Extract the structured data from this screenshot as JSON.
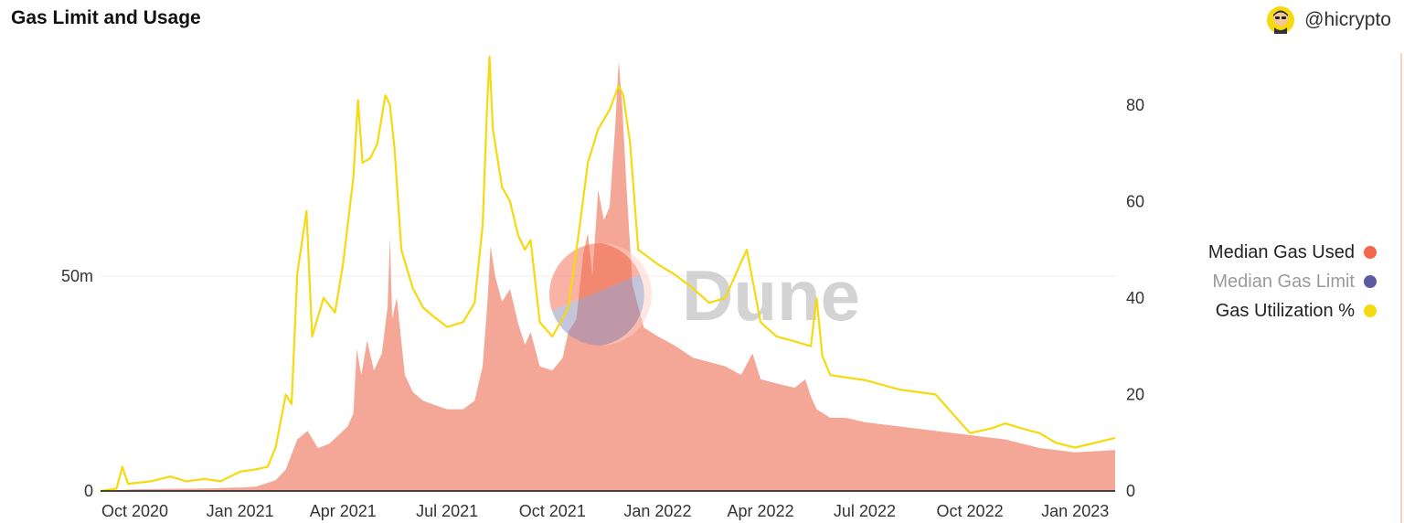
{
  "header": {
    "title": "Gas Limit and Usage",
    "author": "@hicrypto"
  },
  "watermark": {
    "text": "Dune"
  },
  "colors": {
    "gas_used": "#f4a796",
    "gas_used_legend": "#f2684a",
    "gas_limit": "#5a5aa0",
    "utilization": "#f6d90f",
    "grid": "#eeeeee",
    "axis": "#111111"
  },
  "legend": {
    "items": [
      {
        "label": "Median Gas Used",
        "color": "#f2684a",
        "muted": false
      },
      {
        "label": "Median Gas Limit",
        "color": "#5a5aa0",
        "muted": true
      },
      {
        "label": "Gas Utilization %",
        "color": "#f6d90f",
        "muted": false
      }
    ]
  },
  "chart_data": {
    "type": "area",
    "x_axis": {
      "type": "date",
      "range": [
        "2020-09-01",
        "2023-02-05"
      ],
      "ticks": [
        {
          "date": "2020-10-01",
          "label": "Oct 2020"
        },
        {
          "date": "2021-01-01",
          "label": "Jan 2021"
        },
        {
          "date": "2021-04-01",
          "label": "Apr 2021"
        },
        {
          "date": "2021-07-01",
          "label": "Jul 2021"
        },
        {
          "date": "2021-10-01",
          "label": "Oct 2021"
        },
        {
          "date": "2022-01-01",
          "label": "Jan 2022"
        },
        {
          "date": "2022-04-01",
          "label": "Apr 2022"
        },
        {
          "date": "2022-07-01",
          "label": "Jul 2022"
        },
        {
          "date": "2022-10-01",
          "label": "Oct 2022"
        },
        {
          "date": "2023-01-01",
          "label": "Jan 2023"
        }
      ]
    },
    "y_left": {
      "range": [
        0,
        101000000
      ],
      "ticks": [
        {
          "value": 0,
          "label": "0"
        },
        {
          "value": 50000000,
          "label": "50m"
        }
      ]
    },
    "y_right": {
      "range": [
        0,
        90
      ],
      "ticks": [
        {
          "value": 0,
          "label": "0"
        },
        {
          "value": 20,
          "label": "20"
        },
        {
          "value": 40,
          "label": "40"
        },
        {
          "value": 60,
          "label": "60"
        },
        {
          "value": 80,
          "label": "80"
        }
      ]
    },
    "grid": true,
    "legend_position": "right",
    "series": [
      {
        "name": "Median Gas Used",
        "axis": "left",
        "style": "area",
        "points": [
          [
            "2020-09-01",
            0
          ],
          [
            "2020-10-01",
            400000
          ],
          [
            "2020-11-01",
            500000
          ],
          [
            "2020-12-01",
            600000
          ],
          [
            "2021-01-01",
            800000
          ],
          [
            "2021-01-15",
            1000000
          ],
          [
            "2021-02-01",
            2500000
          ],
          [
            "2021-02-10",
            5000000
          ],
          [
            "2021-02-20",
            12000000
          ],
          [
            "2021-03-01",
            14000000
          ],
          [
            "2021-03-10",
            10000000
          ],
          [
            "2021-03-20",
            11000000
          ],
          [
            "2021-03-28",
            13000000
          ],
          [
            "2021-04-05",
            15000000
          ],
          [
            "2021-04-10",
            18000000
          ],
          [
            "2021-04-13",
            33000000
          ],
          [
            "2021-04-17",
            27000000
          ],
          [
            "2021-04-22",
            35000000
          ],
          [
            "2021-04-28",
            28000000
          ],
          [
            "2021-05-05",
            32000000
          ],
          [
            "2021-05-10",
            43000000
          ],
          [
            "2021-05-12",
            59000000
          ],
          [
            "2021-05-14",
            40000000
          ],
          [
            "2021-05-18",
            45000000
          ],
          [
            "2021-05-25",
            27000000
          ],
          [
            "2021-06-01",
            23000000
          ],
          [
            "2021-06-10",
            21000000
          ],
          [
            "2021-06-20",
            20000000
          ],
          [
            "2021-07-01",
            19000000
          ],
          [
            "2021-07-15",
            19000000
          ],
          [
            "2021-07-25",
            21000000
          ],
          [
            "2021-08-01",
            29000000
          ],
          [
            "2021-08-05",
            43000000
          ],
          [
            "2021-08-08",
            57000000
          ],
          [
            "2021-08-12",
            50000000
          ],
          [
            "2021-08-18",
            44000000
          ],
          [
            "2021-08-25",
            47000000
          ],
          [
            "2021-09-01",
            39000000
          ],
          [
            "2021-09-07",
            34000000
          ],
          [
            "2021-09-12",
            37000000
          ],
          [
            "2021-09-20",
            29000000
          ],
          [
            "2021-10-01",
            28000000
          ],
          [
            "2021-10-10",
            31000000
          ],
          [
            "2021-10-15",
            37000000
          ],
          [
            "2021-10-22",
            40000000
          ],
          [
            "2021-10-28",
            55000000
          ],
          [
            "2021-11-01",
            60000000
          ],
          [
            "2021-11-05",
            50000000
          ],
          [
            "2021-11-10",
            70000000
          ],
          [
            "2021-11-15",
            63000000
          ],
          [
            "2021-11-20",
            66000000
          ],
          [
            "2021-11-25",
            85000000
          ],
          [
            "2021-11-28",
            100000000
          ],
          [
            "2021-12-01",
            90000000
          ],
          [
            "2021-12-05",
            70000000
          ],
          [
            "2021-12-10",
            48000000
          ],
          [
            "2021-12-20",
            38000000
          ],
          [
            "2022-01-01",
            36000000
          ],
          [
            "2022-01-15",
            34000000
          ],
          [
            "2022-02-01",
            31000000
          ],
          [
            "2022-02-15",
            30000000
          ],
          [
            "2022-03-01",
            29000000
          ],
          [
            "2022-03-15",
            27000000
          ],
          [
            "2022-03-25",
            32000000
          ],
          [
            "2022-04-01",
            26000000
          ],
          [
            "2022-04-15",
            25000000
          ],
          [
            "2022-05-01",
            24000000
          ],
          [
            "2022-05-10",
            26000000
          ],
          [
            "2022-05-15",
            22000000
          ],
          [
            "2022-05-20",
            19000000
          ],
          [
            "2022-06-01",
            17000000
          ],
          [
            "2022-06-15",
            17000000
          ],
          [
            "2022-07-01",
            16000000
          ],
          [
            "2022-08-01",
            15000000
          ],
          [
            "2022-09-01",
            14000000
          ],
          [
            "2022-10-01",
            13000000
          ],
          [
            "2022-11-01",
            12000000
          ],
          [
            "2022-12-01",
            10000000
          ],
          [
            "2023-01-01",
            9000000
          ],
          [
            "2023-02-05",
            9500000
          ]
        ]
      },
      {
        "name": "Gas Utilization %",
        "axis": "right",
        "style": "line",
        "points": [
          [
            "2020-09-01",
            0
          ],
          [
            "2020-09-15",
            0.5
          ],
          [
            "2020-09-20",
            5
          ],
          [
            "2020-09-25",
            1.5
          ],
          [
            "2020-10-15",
            2
          ],
          [
            "2020-11-01",
            3
          ],
          [
            "2020-11-15",
            2
          ],
          [
            "2020-12-01",
            2.5
          ],
          [
            "2020-12-15",
            2
          ],
          [
            "2021-01-01",
            4
          ],
          [
            "2021-01-15",
            4.5
          ],
          [
            "2021-01-25",
            5
          ],
          [
            "2021-02-01",
            9
          ],
          [
            "2021-02-10",
            20
          ],
          [
            "2021-02-15",
            18
          ],
          [
            "2021-02-20",
            45
          ],
          [
            "2021-02-28",
            58
          ],
          [
            "2021-03-05",
            32
          ],
          [
            "2021-03-15",
            40
          ],
          [
            "2021-03-25",
            37
          ],
          [
            "2021-04-01",
            47
          ],
          [
            "2021-04-10",
            65
          ],
          [
            "2021-04-14",
            81
          ],
          [
            "2021-04-18",
            68
          ],
          [
            "2021-04-25",
            69
          ],
          [
            "2021-05-01",
            72
          ],
          [
            "2021-05-08",
            82
          ],
          [
            "2021-05-12",
            80
          ],
          [
            "2021-05-16",
            71
          ],
          [
            "2021-05-22",
            50
          ],
          [
            "2021-06-01",
            42
          ],
          [
            "2021-06-10",
            38
          ],
          [
            "2021-06-20",
            36
          ],
          [
            "2021-07-01",
            34
          ],
          [
            "2021-07-15",
            35
          ],
          [
            "2021-07-25",
            39
          ],
          [
            "2021-08-01",
            55
          ],
          [
            "2021-08-05",
            80
          ],
          [
            "2021-08-07",
            90
          ],
          [
            "2021-08-10",
            75
          ],
          [
            "2021-08-18",
            63
          ],
          [
            "2021-08-25",
            60
          ],
          [
            "2021-09-01",
            53
          ],
          [
            "2021-09-07",
            50
          ],
          [
            "2021-09-12",
            52
          ],
          [
            "2021-09-20",
            35
          ],
          [
            "2021-10-01",
            32
          ],
          [
            "2021-10-15",
            38
          ],
          [
            "2021-10-25",
            55
          ],
          [
            "2021-11-01",
            68
          ],
          [
            "2021-11-10",
            75
          ],
          [
            "2021-11-20",
            79
          ],
          [
            "2021-11-28",
            84
          ],
          [
            "2021-12-02",
            82
          ],
          [
            "2021-12-08",
            72
          ],
          [
            "2021-12-15",
            50
          ],
          [
            "2022-01-01",
            47
          ],
          [
            "2022-01-15",
            45
          ],
          [
            "2022-02-01",
            42
          ],
          [
            "2022-02-15",
            39
          ],
          [
            "2022-03-01",
            40
          ],
          [
            "2022-03-20",
            50
          ],
          [
            "2022-04-01",
            35
          ],
          [
            "2022-04-15",
            32
          ],
          [
            "2022-05-01",
            31
          ],
          [
            "2022-05-15",
            30
          ],
          [
            "2022-05-20",
            40
          ],
          [
            "2022-05-25",
            28
          ],
          [
            "2022-06-01",
            24
          ],
          [
            "2022-07-01",
            23
          ],
          [
            "2022-08-01",
            21
          ],
          [
            "2022-09-01",
            20
          ],
          [
            "2022-10-01",
            12
          ],
          [
            "2022-10-20",
            13
          ],
          [
            "2022-11-01",
            14
          ],
          [
            "2022-11-15",
            13
          ],
          [
            "2022-12-01",
            12
          ],
          [
            "2022-12-15",
            10
          ],
          [
            "2023-01-01",
            9
          ],
          [
            "2023-02-05",
            11
          ]
        ]
      }
    ]
  }
}
